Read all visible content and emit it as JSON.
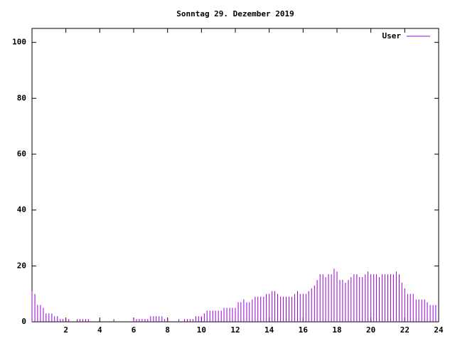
{
  "chart_data": {
    "type": "impulses",
    "title": "Sonntag 29. Dezember 2019",
    "x": [
      0,
      0.17,
      0.33,
      0.5,
      0.67,
      0.83,
      1,
      1.17,
      1.33,
      1.5,
      1.67,
      1.83,
      2,
      2.17,
      2.33,
      2.5,
      2.67,
      2.83,
      3,
      3.17,
      3.33,
      3.5,
      3.67,
      3.83,
      4,
      4.17,
      4.33,
      4.5,
      4.67,
      4.83,
      5,
      5.17,
      5.33,
      5.5,
      5.67,
      5.83,
      6,
      6.17,
      6.33,
      6.5,
      6.67,
      6.83,
      7,
      7.17,
      7.33,
      7.5,
      7.67,
      7.83,
      8,
      8.17,
      8.33,
      8.5,
      8.67,
      8.83,
      9,
      9.17,
      9.33,
      9.5,
      9.67,
      9.83,
      10,
      10.17,
      10.33,
      10.5,
      10.67,
      10.83,
      11,
      11.17,
      11.33,
      11.5,
      11.67,
      11.83,
      12,
      12.17,
      12.33,
      12.5,
      12.67,
      12.83,
      13,
      13.17,
      13.33,
      13.5,
      13.67,
      13.83,
      14,
      14.17,
      14.33,
      14.5,
      14.67,
      14.83,
      15,
      15.17,
      15.33,
      15.5,
      15.67,
      15.83,
      16,
      16.17,
      16.33,
      16.5,
      16.67,
      16.83,
      17,
      17.17,
      17.33,
      17.5,
      17.67,
      17.83,
      18,
      18.17,
      18.33,
      18.5,
      18.67,
      18.83,
      19,
      19.17,
      19.33,
      19.5,
      19.67,
      19.83,
      20,
      20.17,
      20.33,
      20.5,
      20.67,
      20.83,
      21,
      21.17,
      21.33,
      21.5,
      21.67,
      21.83,
      22,
      22.17,
      22.33,
      22.5,
      22.67,
      22.83,
      23,
      23.17,
      23.33,
      23.5,
      23.67,
      23.83
    ],
    "series": [
      {
        "name": "User",
        "color": "#9400d3",
        "values": [
          11,
          10,
          6,
          6,
          5,
          3,
          3,
          3,
          2,
          2,
          1,
          1,
          1,
          1,
          0,
          0,
          1,
          1,
          1,
          1,
          1,
          0,
          0,
          0,
          0,
          0,
          0,
          0,
          0,
          1,
          0,
          0,
          0,
          0,
          0,
          0,
          1,
          1,
          1,
          1,
          1,
          1,
          2,
          2,
          2,
          2,
          2,
          1,
          1,
          0,
          0,
          0,
          1,
          0,
          1,
          1,
          1,
          1,
          2,
          2,
          2,
          3,
          4,
          4,
          4,
          4,
          4,
          4,
          5,
          5,
          5,
          5,
          5,
          7,
          7,
          8,
          7,
          7,
          8,
          9,
          9,
          9,
          9,
          10,
          10,
          11,
          11,
          10,
          9,
          9,
          9,
          9,
          9,
          10,
          11,
          10,
          10,
          10,
          11,
          12,
          13,
          15,
          17,
          17,
          16,
          17,
          17,
          19,
          18,
          15,
          15,
          14,
          15,
          16,
          17,
          17,
          16,
          16,
          17,
          18,
          17,
          17,
          17,
          16,
          17,
          17,
          17,
          17,
          17,
          18,
          17,
          14,
          12,
          10,
          10,
          10,
          8,
          8,
          8,
          8,
          7,
          6,
          6,
          6
        ]
      }
    ],
    "xlim": [
      0,
      24
    ],
    "xticks": [
      2,
      4,
      6,
      8,
      10,
      12,
      14,
      16,
      18,
      20,
      22,
      24
    ],
    "ylim": [
      0,
      105
    ],
    "yticks": [
      0,
      20,
      40,
      60,
      80,
      100
    ],
    "legend": "upper right"
  }
}
